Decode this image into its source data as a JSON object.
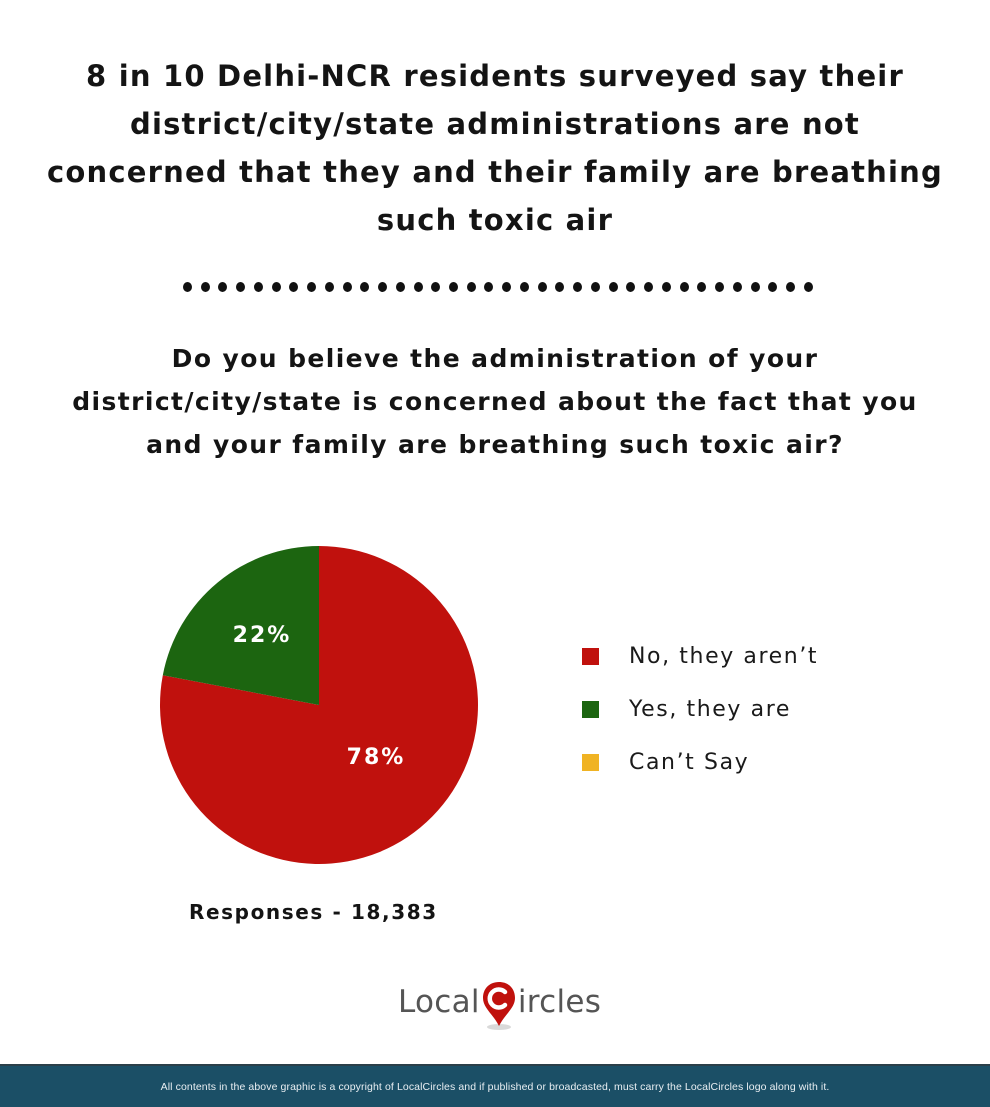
{
  "header": {
    "title": "8 in 10 Delhi-NCR residents surveyed say their district/city/state administrations are not concerned that they and their family are breathing such toxic air",
    "title_lines": [
      "8 in 10 Delhi-NCR residents surveyed say their",
      "district/city/state administrations are not",
      "concerned that they and their family are breathing",
      "such toxic air"
    ],
    "divider_dot_count": 36
  },
  "question": {
    "text": "Do you believe the administration of your district/city/state is concerned about the fact that you and your family are breathing such toxic air?",
    "lines": [
      "Do you believe the administration of your",
      "district/city/state is concerned about the fact that you",
      "and your family are breathing such toxic air?"
    ]
  },
  "chart_data": {
    "type": "pie",
    "title": "Do you believe the administration of your district/city/state is concerned about the fact that you and your family are breathing such toxic air?",
    "categories": [
      "No, they aren't",
      "Yes, they are",
      "Can't Say"
    ],
    "values": [
      78,
      22,
      0
    ],
    "unit": "%",
    "colors": [
      "#c0110d",
      "#1c6510",
      "#f0b323"
    ],
    "data_labels": [
      "78%",
      "22%",
      ""
    ],
    "legend_position": "right",
    "responses": 18383
  },
  "legend": {
    "items": [
      {
        "label": "No, they aren’t",
        "color": "#c0110d"
      },
      {
        "label": "Yes, they are",
        "color": "#1c6510"
      },
      {
        "label": "Can’t Say",
        "color": "#f0b323"
      }
    ]
  },
  "pie_labels": {
    "no": "78%",
    "yes": "22%"
  },
  "responses": {
    "text": "Responses - 18,383"
  },
  "logo": {
    "left": "Local",
    "right": "ircles",
    "accent_color": "#c0110d"
  },
  "footer": {
    "text": "All contents in the above graphic is a copyright of LocalCircles and if published or broadcasted, must carry the LocalCircles logo along with it.",
    "background": "#1b4f66"
  }
}
